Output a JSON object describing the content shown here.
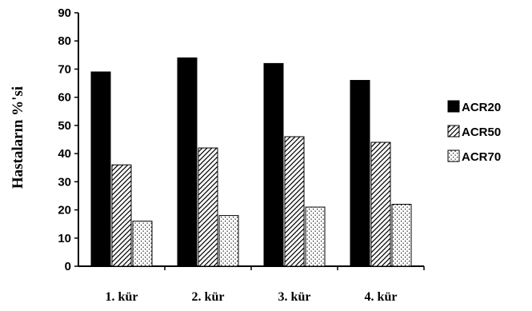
{
  "chart_data": {
    "type": "bar",
    "title": "",
    "xlabel": "",
    "ylabel": "Hastaların %'si",
    "categories": [
      "1. kür",
      "2. kür",
      "3. kür",
      "4. kür"
    ],
    "series": [
      {
        "name": "ACR20",
        "values": [
          69,
          74,
          72,
          66
        ],
        "fill": "solid",
        "color": "#000000"
      },
      {
        "name": "ACR50",
        "values": [
          36,
          42,
          46,
          44
        ],
        "fill": "diagonal-hatch",
        "color": "#000000"
      },
      {
        "name": "ACR70",
        "values": [
          16,
          18,
          21,
          22
        ],
        "fill": "dotted",
        "color": "#000000"
      }
    ],
    "ylim": [
      0,
      90
    ],
    "yticks": [
      "0",
      "10",
      "20",
      "30",
      "40",
      "50",
      "60",
      "70",
      "80",
      "90"
    ],
    "grid": false,
    "legend": "right"
  }
}
